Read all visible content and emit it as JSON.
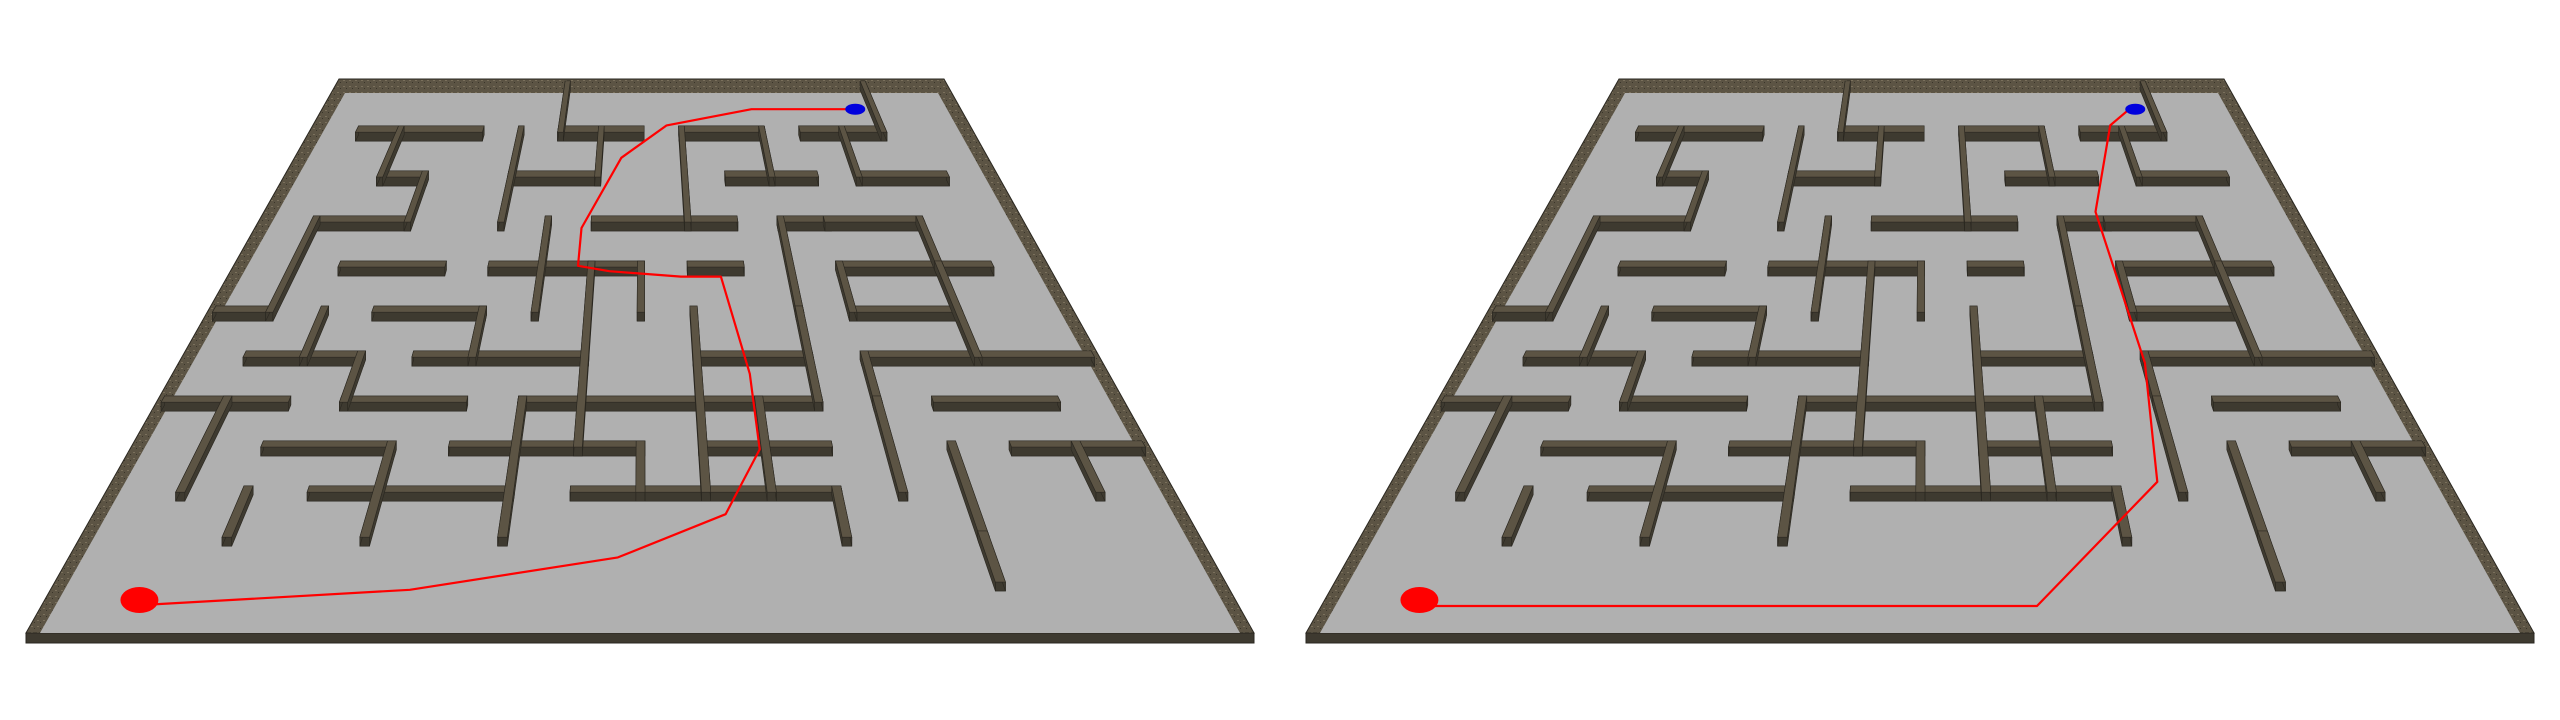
{
  "scene": {
    "background": "#ffffff",
    "floor_color": "#b0b0b0",
    "wall_top_color": "#5c5444",
    "wall_side_color": "#3e3a30",
    "wall_edge_color": "#2a2720",
    "path_color": "#ff0000",
    "start_marker_color": "#ff0000",
    "goal_marker_color": "#0000dd"
  },
  "panels": [
    {
      "id": "left",
      "description_icon": "maze-board-icon",
      "path_style": "curved-route"
    },
    {
      "id": "right",
      "description_icon": "maze-board-icon",
      "path_style": "straight-route"
    }
  ]
}
